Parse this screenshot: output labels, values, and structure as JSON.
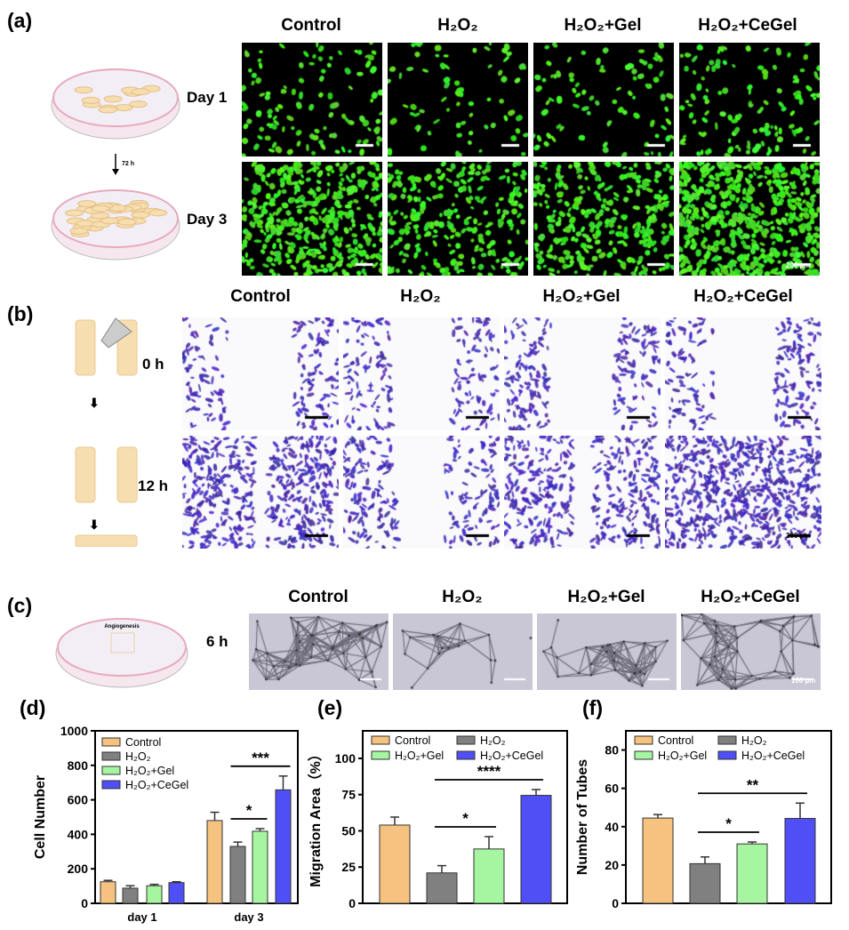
{
  "panels": {
    "a": {
      "label": "(a)",
      "titles": [
        "Control",
        "H₂O₂",
        "H₂O₂+Gel",
        "H₂O₂+CeGel"
      ],
      "rows": [
        "Day 1",
        "Day 3"
      ],
      "interval": "72 h",
      "scale_bar": "200 µm"
    },
    "b": {
      "label": "(b)",
      "titles": [
        "Control",
        "H₂O₂",
        "H₂O₂+Gel",
        "H₂O₂+CeGel"
      ],
      "rows": [
        "0 h",
        "12 h"
      ],
      "scale_bar": "200 µm"
    },
    "c": {
      "label": "(c)",
      "titles": [
        "Control",
        "H₂O₂",
        "H₂O₂+Gel",
        "H₂O₂+CeGel"
      ],
      "time": "6 h",
      "dish_text": "Angiogenesis",
      "scale_bar": "100 µm"
    },
    "d": {
      "label": "(d)"
    },
    "e": {
      "label": "(e)"
    },
    "f": {
      "label": "(f)"
    }
  },
  "colors": {
    "Control": "#F5C27F",
    "H2O2": "#808080",
    "Gel": "#A6F5A0",
    "CeGel": "#4F4FF5"
  },
  "chart_data": [
    {
      "type": "bar",
      "panel": "d",
      "title": "",
      "xlabel": "",
      "ylabel": "Cell Number",
      "ylim": [
        0,
        1000
      ],
      "yticks": [
        0,
        200,
        400,
        600,
        800,
        1000
      ],
      "categories": [
        "day 1",
        "day 3"
      ],
      "legend": [
        "Control",
        "H₂O₂",
        "H₂O₂+Gel",
        "H₂O₂+CeGel"
      ],
      "legend_position": "top-left",
      "series": [
        {
          "name": "Control",
          "values": [
            125,
            480
          ],
          "errors": [
            8,
            48
          ]
        },
        {
          "name": "H₂O₂",
          "values": [
            88,
            330
          ],
          "errors": [
            14,
            25
          ]
        },
        {
          "name": "H₂O₂+Gel",
          "values": [
            102,
            418
          ],
          "errors": [
            8,
            15
          ]
        },
        {
          "name": "H₂O₂+CeGel",
          "values": [
            120,
            658
          ],
          "errors": [
            5,
            80
          ]
        }
      ],
      "significance": [
        {
          "category": "day 3",
          "from": "H₂O₂",
          "to": "H₂O₂+Gel",
          "label": "*"
        },
        {
          "category": "day 3",
          "from": "H₂O₂",
          "to": "H₂O₂+CeGel",
          "label": "***"
        }
      ]
    },
    {
      "type": "bar",
      "panel": "e",
      "title": "",
      "xlabel": "",
      "ylabel": "Migration Area（%）",
      "ylim": [
        0,
        119
      ],
      "yticks": [
        0,
        25,
        50,
        75,
        100
      ],
      "categories": [
        "Control",
        "H₂O₂",
        "H₂O₂+Gel",
        "H₂O₂+CeGel"
      ],
      "legend": [
        "Control",
        "H₂O₂",
        "H₂O₂+Gel",
        "H₂O₂+CeGel"
      ],
      "legend_position": "top",
      "values": [
        54,
        21,
        37.5,
        74.5
      ],
      "errors": [
        5.5,
        5,
        8.5,
        4
      ],
      "significance": [
        {
          "from": "H₂O₂",
          "to": "H₂O₂+Gel",
          "label": "*"
        },
        {
          "from": "H₂O₂",
          "to": "H₂O₂+CeGel",
          "label": "****"
        }
      ]
    },
    {
      "type": "bar",
      "panel": "f",
      "title": "",
      "xlabel": "",
      "ylabel": "Number of Tubes",
      "ylim": [
        0,
        90
      ],
      "yticks": [
        0,
        20,
        40,
        60,
        80
      ],
      "categories": [
        "Control",
        "H₂O₂",
        "H₂O₂+Gel",
        "H₂O₂+CeGel"
      ],
      "legend": [
        "Control",
        "H₂O₂",
        "H₂O₂+Gel",
        "H₂O₂+CeGel"
      ],
      "legend_position": "top",
      "values": [
        44.5,
        20.7,
        31,
        44.3
      ],
      "errors": [
        1.8,
        3.5,
        1,
        8
      ],
      "significance": [
        {
          "from": "H₂O₂",
          "to": "H₂O₂+Gel",
          "label": "*"
        },
        {
          "from": "H₂O₂",
          "to": "H₂O₂+CeGel",
          "label": "**"
        }
      ]
    }
  ]
}
